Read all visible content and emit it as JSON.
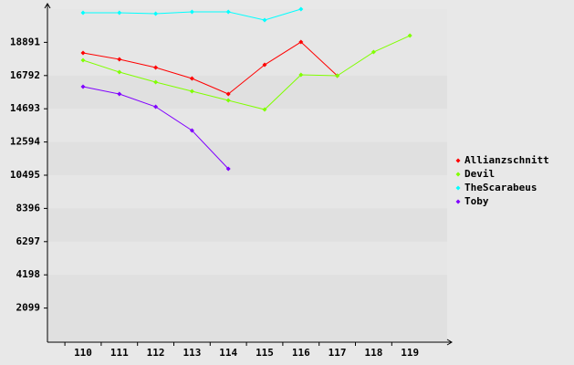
{
  "chart_data": {
    "type": "line",
    "categories": [
      "110",
      "111",
      "112",
      "113",
      "114",
      "115",
      "116",
      "117",
      "118",
      "119"
    ],
    "series": [
      {
        "name": "Allianzschnitt",
        "color": "#ff0000",
        "values": [
          18221,
          17818,
          17298,
          16606,
          15626,
          17471,
          18912,
          16779,
          null,
          null
        ]
      },
      {
        "name": "Devil",
        "color": "#80ff00",
        "values": [
          17760,
          17010,
          16376,
          15799,
          15222,
          14646,
          16837,
          16779,
          18278,
          19316
        ]
      },
      {
        "name": "TheScarabeus",
        "color": "#00ffff",
        "values": [
          20758,
          20758,
          20700,
          20815,
          20815,
          20296,
          20988,
          null,
          null,
          null
        ]
      },
      {
        "name": "Toby",
        "color": "#8000ff",
        "values": [
          16087,
          15626,
          14819,
          13320,
          10898,
          null,
          null,
          null,
          null,
          null
        ]
      }
    ],
    "ylim": [
      0,
      20990
    ],
    "yticks": [
      2099,
      4198,
      6297,
      8396,
      10495,
      12594,
      14693,
      16792,
      18891
    ],
    "grid": true,
    "legend": "right"
  }
}
